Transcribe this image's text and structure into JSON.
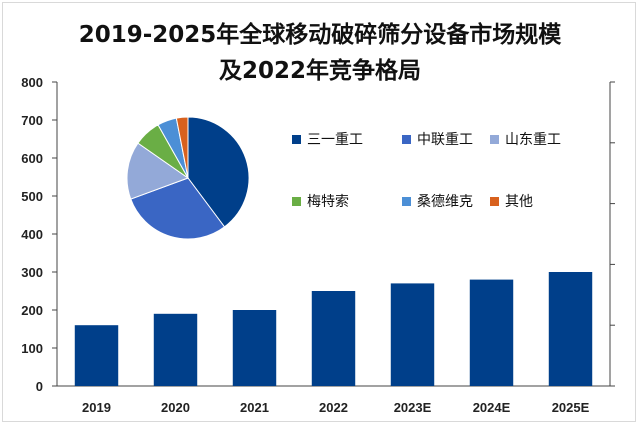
{
  "chart_data": [
    {
      "type": "bar",
      "title_line1": "2019-2025年全球移动破碎筛分设备市场规模",
      "title_line2": "及2022年竞争格局",
      "categories": [
        "2019",
        "2020",
        "2021",
        "2022",
        "2023E",
        "2024E",
        "2025E"
      ],
      "values": [
        160,
        190,
        200,
        250,
        270,
        280,
        300
      ],
      "ylim": [
        0,
        800
      ],
      "yticks": [
        "0",
        "100",
        "200",
        "300",
        "400",
        "500",
        "600",
        "700",
        "800"
      ],
      "grid": false,
      "color": "#003f8a"
    },
    {
      "type": "pie",
      "slices": [
        {
          "name": "三一重工",
          "value": 39,
          "color": "#003f8a"
        },
        {
          "name": "中联重工",
          "value": 29,
          "color": "#3a66c4"
        },
        {
          "name": "山东重工",
          "value": 15,
          "color": "#93a9d8"
        },
        {
          "name": "梅特索",
          "value": 7,
          "color": "#6aae45"
        },
        {
          "name": "桑德维克",
          "value": 5,
          "color": "#4c8fd6"
        },
        {
          "name": "其他",
          "value": 3,
          "color": "#d8611e"
        }
      ],
      "legend": "right"
    }
  ]
}
